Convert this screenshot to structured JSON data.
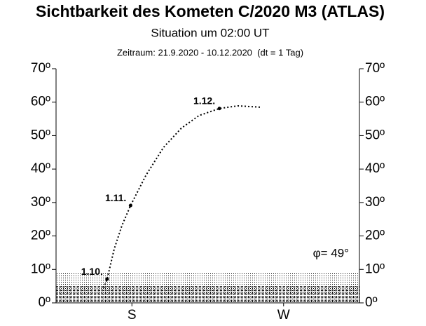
{
  "chart_data": {
    "type": "line",
    "title": "Sichtbarkeit des Kometen C/2020 M3 (ATLAS)",
    "subtitle": "Situation um 02:00 UT",
    "note": "Zeitraum: 21.9.2020 - 10.12.2020  (dt = 1 Tag)",
    "annotation": "φ= 49°",
    "x": [
      163.3,
      165.3,
      169.5,
      174.0,
      179.2,
      188.4,
      198.8,
      209.3,
      219.8,
      231.9,
      242.8,
      256.2
    ],
    "series": [
      {
        "color": "#000000",
        "values": [
          4.4,
          7.1,
          16.1,
          23.0,
          29.1,
          38.2,
          46.5,
          52.2,
          56.0,
          58.1,
          58.9,
          58.5
        ]
      }
    ],
    "labeled_points": [
      {
        "label": "1.10.",
        "x": 165.3,
        "y": 7.1
      },
      {
        "label": "1.11.",
        "x": 179.2,
        "y": 29.1
      },
      {
        "label": "1.12.",
        "x": 231.9,
        "y": 58.1
      }
    ],
    "shaded_below": [
      9,
      5
    ],
    "xlim": [
      135,
      315
    ],
    "xticks": [
      {
        "value": 180,
        "label": "S"
      },
      {
        "value": 270,
        "label": "W"
      }
    ],
    "ylim": [
      0,
      70
    ],
    "yticks": [
      {
        "value": 0,
        "label": "0º"
      },
      {
        "value": 10,
        "label": "10º"
      },
      {
        "value": 20,
        "label": "20º"
      },
      {
        "value": 30,
        "label": "30º"
      },
      {
        "value": 40,
        "label": "40º"
      },
      {
        "value": 50,
        "label": "50º"
      },
      {
        "value": 60,
        "label": "60º"
      },
      {
        "value": 70,
        "label": "70º"
      }
    ]
  }
}
